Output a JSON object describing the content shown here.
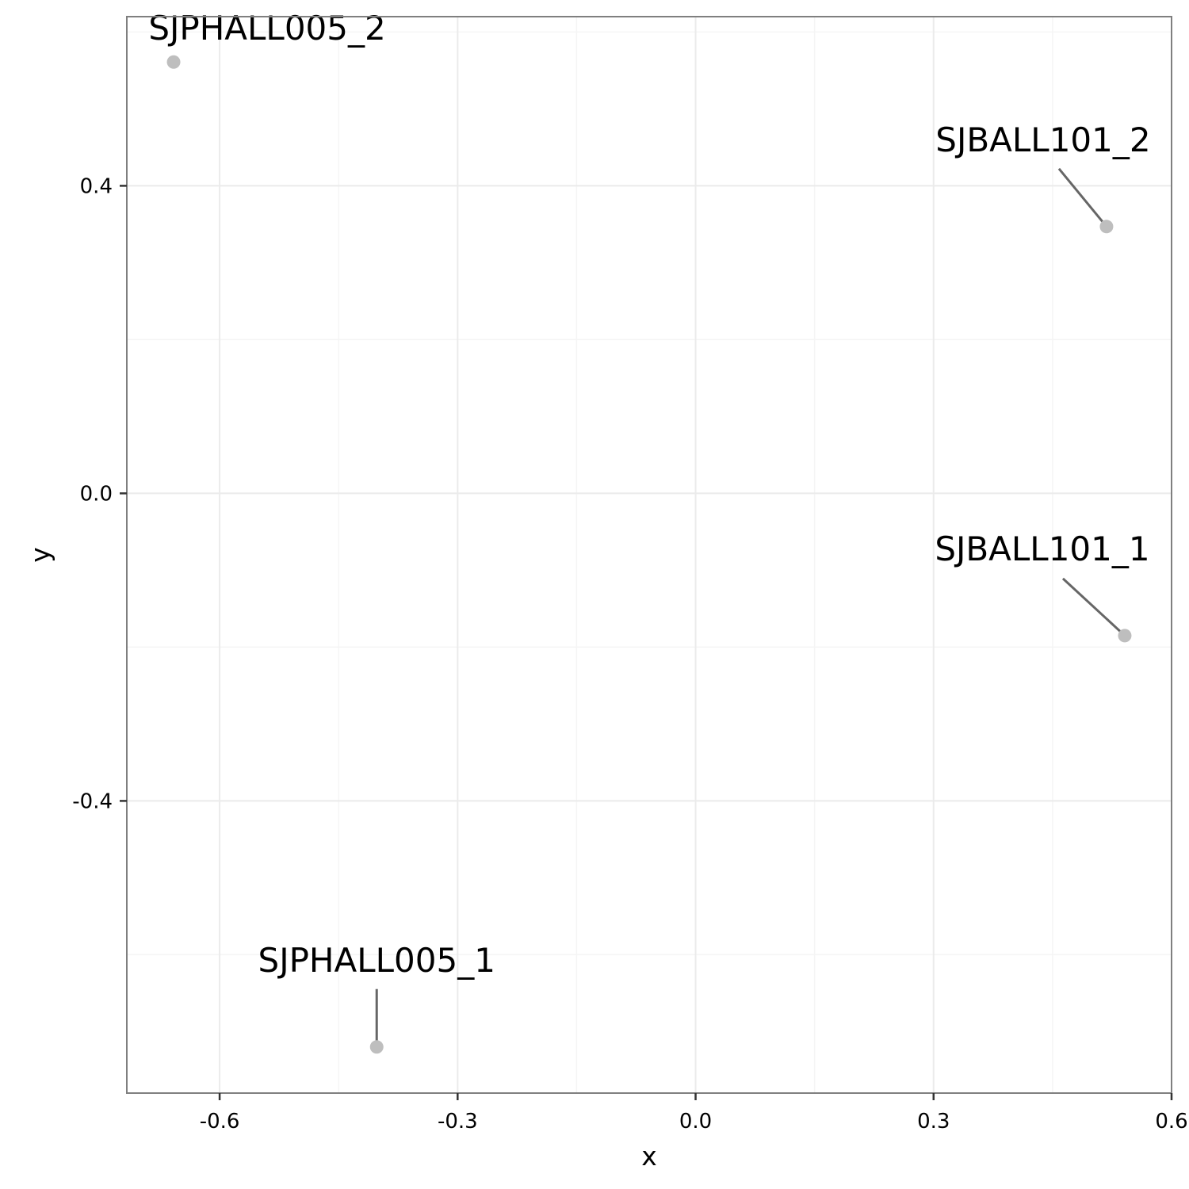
{
  "chart_data": {
    "type": "scatter",
    "title": "",
    "xlabel": "x",
    "ylabel": "y",
    "xlim": [
      -0.717,
      0.6
    ],
    "ylim": [
      -0.78,
      0.62
    ],
    "xticks": [
      -0.6,
      -0.3,
      0.0,
      0.3,
      0.6
    ],
    "xtick_labels": [
      "-0.6",
      "-0.3",
      "0.0",
      "0.3",
      "0.6"
    ],
    "yticks": [
      0.4,
      0.0,
      -0.4
    ],
    "ytick_labels": [
      "0.4",
      "0.0",
      "-0.4"
    ],
    "grid": true,
    "legend": "none",
    "colors": {
      "point": "#bebebe",
      "leader_line": "#666666",
      "panel_border": "#7f7f7f",
      "grid_major": "#ebebeb",
      "grid_minor": "#f5f5f5",
      "text": "#000000"
    },
    "points": [
      {
        "label": "SJPHALL005_2",
        "x": -0.658,
        "y": 0.561
      },
      {
        "label": "SJBALL101_2",
        "x": 0.518,
        "y": 0.347
      },
      {
        "label": "SJBALL101_1",
        "x": 0.541,
        "y": -0.185
      },
      {
        "label": "SJPHALL005_1",
        "x": -0.402,
        "y": -0.72
      }
    ]
  }
}
